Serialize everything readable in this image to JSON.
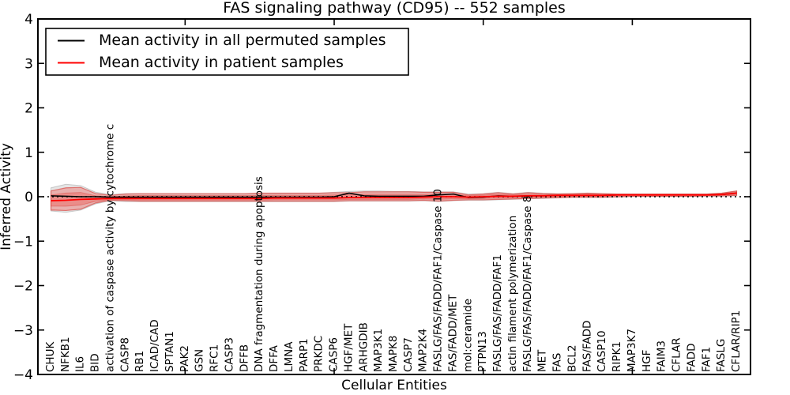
{
  "figure": {
    "title": "FAS signaling pathway (CD95) -- 552 samples",
    "xlabel": "Cellular Entities",
    "ylabel": "Inferred Activity"
  },
  "legend": {
    "entries": [
      {
        "label": "Mean activity in all permuted samples",
        "color": "#000000"
      },
      {
        "label": "Mean activity in patient samples",
        "color": "#ff0000"
      }
    ]
  },
  "colors": {
    "permuted_line": "#000000",
    "patient_line": "#ff0000",
    "patient_band_fill": "rgba(239,70,65,0.33)",
    "patient_band_edge": "rgba(215,40,35,0.55)",
    "permuted_band_fill": "rgba(110,110,110,0.18)",
    "zero_line": "#000000"
  },
  "chart_data": {
    "type": "line",
    "title": "FAS signaling pathway (CD95) -- 552 samples",
    "xlabel": "Cellular Entities",
    "ylabel": "Inferred Activity",
    "ylim": [
      -4,
      4
    ],
    "yticks": [
      4,
      3,
      2,
      1,
      0,
      -1,
      -2,
      -3,
      -4
    ],
    "ytick_labels": [
      "4",
      "3",
      "2",
      "1",
      "0",
      "−1",
      "−2",
      "−3",
      "−4"
    ],
    "xtick_indices": [
      9,
      19,
      29,
      39
    ],
    "grid": false,
    "zero_line_style": "dotted",
    "legend_position": "upper left",
    "categories": [
      "CHUK",
      "NFKB1",
      "IL6",
      "BID",
      "activation of caspase activity by cytochrome c",
      "CASP8",
      "RB1",
      "ICAD/CAD",
      "SPTAN1",
      "PAK2",
      "GSN",
      "RFC1",
      "CASP3",
      "DFFB",
      "DNA fragmentation during apoptosis",
      "DFFA",
      "LMNA",
      "PARP1",
      "PRKDC",
      "CASP6",
      "HGF/MET",
      "ARHGDIB",
      "MAP3K1",
      "MAPK8",
      "CASP7",
      "MAP2K4",
      "FASLG/FAS/FADD/FAF1/Caspase 10",
      "FAS/FADD/MET",
      "mol:ceramide",
      "PTPN13",
      "FASLG/FAS/FADD/FAF1",
      "actin filament polymerization",
      "FASLG/FAS/FADD/FAF1/Caspase 8",
      "MET",
      "FAS",
      "BCL2",
      "FAS/FADD",
      "CASP10",
      "RIPK1",
      "MAP3K7",
      "HGF",
      "FAIM3",
      "CFLAR",
      "FADD",
      "FAF1",
      "FASLG",
      "CFLAR/RIP1"
    ],
    "series": [
      {
        "name": "Mean activity in all permuted samples",
        "color": "#000000",
        "values": [
          0.02,
          0.01,
          0,
          0,
          -0.01,
          -0.01,
          -0.01,
          -0.01,
          -0.01,
          -0.01,
          -0.01,
          -0.01,
          -0.01,
          -0.01,
          -0.01,
          -0.01,
          -0.01,
          -0.01,
          -0.01,
          0,
          0.08,
          0.02,
          0.01,
          0.01,
          0.01,
          0.01,
          0.04,
          0.06,
          -0.02,
          -0.01,
          0.02,
          0.01,
          0.02,
          0.02,
          0.03,
          0.03,
          0.03,
          0.03,
          0.04,
          0.04,
          0.04,
          0.04,
          0.04,
          0.04,
          0.04,
          0.05,
          0.08
        ]
      },
      {
        "name": "Mean activity in patient samples",
        "color": "#ff0000",
        "values": [
          -0.09,
          -0.08,
          -0.06,
          -0.05,
          -0.04,
          -0.04,
          -0.04,
          -0.04,
          -0.04,
          -0.04,
          -0.04,
          -0.04,
          -0.04,
          -0.04,
          -0.04,
          -0.03,
          -0.03,
          -0.03,
          -0.03,
          -0.03,
          -0.02,
          -0.02,
          -0.02,
          -0.02,
          -0.02,
          -0.01,
          0,
          0,
          -0.01,
          0,
          0.01,
          0.01,
          0.02,
          0.02,
          0.03,
          0.03,
          0.03,
          0.03,
          0.04,
          0.04,
          0.04,
          0.04,
          0.04,
          0.04,
          0.04,
          0.05,
          0.08
        ]
      }
    ],
    "bands": [
      {
        "name": "patient samples spread",
        "upper": [
          0.13,
          0.2,
          0.21,
          0.07,
          0.03,
          0.06,
          0.07,
          0.07,
          0.07,
          0.07,
          0.07,
          0.07,
          0.07,
          0.07,
          0.08,
          0.08,
          0.08,
          0.08,
          0.08,
          0.09,
          0.09,
          0.11,
          0.11,
          0.11,
          0.11,
          0.1,
          0.1,
          0.1,
          0.04,
          0.06,
          0.09,
          0.06,
          0.09,
          0.07,
          0.06,
          0.07,
          0.08,
          0.07,
          0.06,
          0.06,
          0.06,
          0.06,
          0.06,
          0.06,
          0.06,
          0.08,
          0.13
        ],
        "lower": [
          -0.3,
          -0.31,
          -0.28,
          -0.14,
          -0.08,
          -0.09,
          -0.1,
          -0.1,
          -0.1,
          -0.1,
          -0.1,
          -0.1,
          -0.1,
          -0.1,
          -0.1,
          -0.1,
          -0.1,
          -0.1,
          -0.1,
          -0.1,
          -0.09,
          -0.09,
          -0.09,
          -0.09,
          -0.09,
          -0.08,
          -0.1,
          -0.08,
          -0.07,
          -0.07,
          -0.06,
          -0.05,
          -0.04,
          -0.03,
          -0.02,
          -0.01,
          -0.01,
          -0.01,
          0,
          0.01,
          0.01,
          0.01,
          0.01,
          0.01,
          0.02,
          0.02,
          0.03
        ]
      },
      {
        "name": "permuted samples spread",
        "upper": [
          0.2,
          0.28,
          0.25,
          0.1,
          0.05,
          0.07,
          0.07,
          0.07,
          0.07,
          0.07,
          0.07,
          0.07,
          0.07,
          0.07,
          0.08,
          0.08,
          0.08,
          0.08,
          0.08,
          0.1,
          0.12,
          0.13,
          0.13,
          0.12,
          0.12,
          0.11,
          0.11,
          0.11,
          0.06,
          0.07,
          0.1,
          0.07,
          0.1,
          0.08,
          0.07,
          0.07,
          0.08,
          0.07,
          0.06,
          0.06,
          0.06,
          0.06,
          0.06,
          0.06,
          0.06,
          0.08,
          0.13
        ],
        "lower": [
          -0.32,
          -0.35,
          -0.3,
          -0.16,
          -0.09,
          -0.11,
          -0.11,
          -0.11,
          -0.11,
          -0.11,
          -0.11,
          -0.11,
          -0.11,
          -0.11,
          -0.11,
          -0.11,
          -0.11,
          -0.11,
          -0.11,
          -0.11,
          -0.1,
          -0.1,
          -0.1,
          -0.1,
          -0.1,
          -0.09,
          -0.11,
          -0.09,
          -0.08,
          -0.08,
          -0.07,
          -0.06,
          -0.05,
          -0.04,
          -0.03,
          -0.02,
          -0.02,
          -0.02,
          -0.01,
          0,
          0,
          0,
          0,
          0,
          0.01,
          0.01,
          0.02
        ]
      }
    ]
  }
}
